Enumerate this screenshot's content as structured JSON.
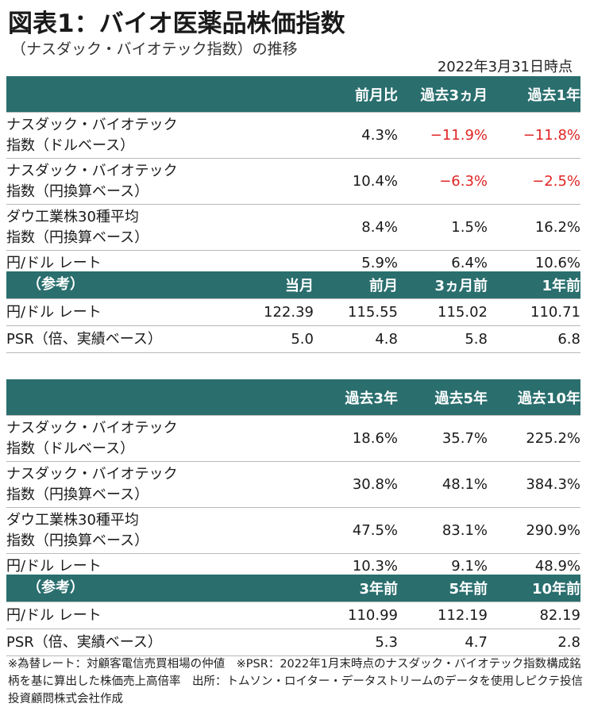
{
  "title": "図表1：バイオ医薬品株価指数",
  "subtitle": "（ナスダック・バイオテック指数）の推移",
  "as_of": "2022年3月31日時点",
  "table1": {
    "headers": [
      "",
      "前月比",
      "過去3ヵ月",
      "過去1年"
    ],
    "rows": [
      {
        "label1": "ナスダック・バイオテック",
        "label2": "指数（ドルベース）",
        "values": [
          "4.3%",
          "−11.9%",
          "−11.8%"
        ],
        "neg": [
          false,
          true,
          true
        ]
      },
      {
        "label1": "ナスダック・バイオテック",
        "label2": "指数（円換算ベース）",
        "values": [
          "10.4%",
          "−6.3%",
          "−2.5%"
        ],
        "neg": [
          false,
          true,
          true
        ]
      },
      {
        "label1": "ダウ工業株30種平均",
        "label2": "指数（円換算ベース）",
        "values": [
          "8.4%",
          "1.5%",
          "16.2%"
        ],
        "neg": [
          false,
          false,
          false
        ]
      },
      {
        "label1": "円/ドル レート",
        "label2": "",
        "values": [
          "5.9%",
          "6.4%",
          "10.6%"
        ],
        "neg": [
          false,
          false,
          false
        ]
      }
    ],
    "ref_headers": [
      "（参考）",
      "当月",
      "前月",
      "3ヵ月前",
      "1年前"
    ],
    "ref_rows": [
      {
        "label": "円/ドル レート",
        "values": [
          "122.39",
          "115.55",
          "115.02",
          "110.71"
        ]
      },
      {
        "label": "PSR（倍、実績ベース）",
        "values": [
          "5.0",
          "4.8",
          "5.8",
          "6.8"
        ]
      }
    ]
  },
  "table2": {
    "headers": [
      "",
      "過去3年",
      "過去5年",
      "過去10年"
    ],
    "rows": [
      {
        "label1": "ナスダック・バイオテック",
        "label2": "指数（ドルベース）",
        "values": [
          "18.6%",
          "35.7%",
          "225.2%"
        ]
      },
      {
        "label1": "ナスダック・バイオテック",
        "label2": "指数（円換算ベース）",
        "values": [
          "30.8%",
          "48.1%",
          "384.3%"
        ]
      },
      {
        "label1": "ダウ工業株30種平均",
        "label2": "指数（円換算ベース）",
        "values": [
          "47.5%",
          "83.1%",
          "290.9%"
        ]
      },
      {
        "label1": "円/ドル レート",
        "label2": "",
        "values": [
          "10.3%",
          "9.1%",
          "48.9%"
        ]
      }
    ],
    "ref_headers": [
      "（参考）",
      "3年前",
      "5年前",
      "10年前"
    ],
    "ref_rows": [
      {
        "label": "円/ドル レート",
        "values": [
          "110.99",
          "112.19",
          "82.19"
        ]
      },
      {
        "label": "PSR（倍、実績ベース）",
        "values": [
          "5.3",
          "4.7",
          "2.8"
        ]
      }
    ]
  },
  "footnote": "※為替レート：対顧客電信売買相場の仲値　※PSR：2022年1月末時点のナスダック・バイオテック指数構成銘柄を基に算出した株価売上高倍率　出所：トムソン・ロイター・データストリームのデータを使用しピクテ投信投資顧問株式会社作成",
  "colors": {
    "header_bg": "#2a6e6e",
    "negative": "#e02424"
  }
}
